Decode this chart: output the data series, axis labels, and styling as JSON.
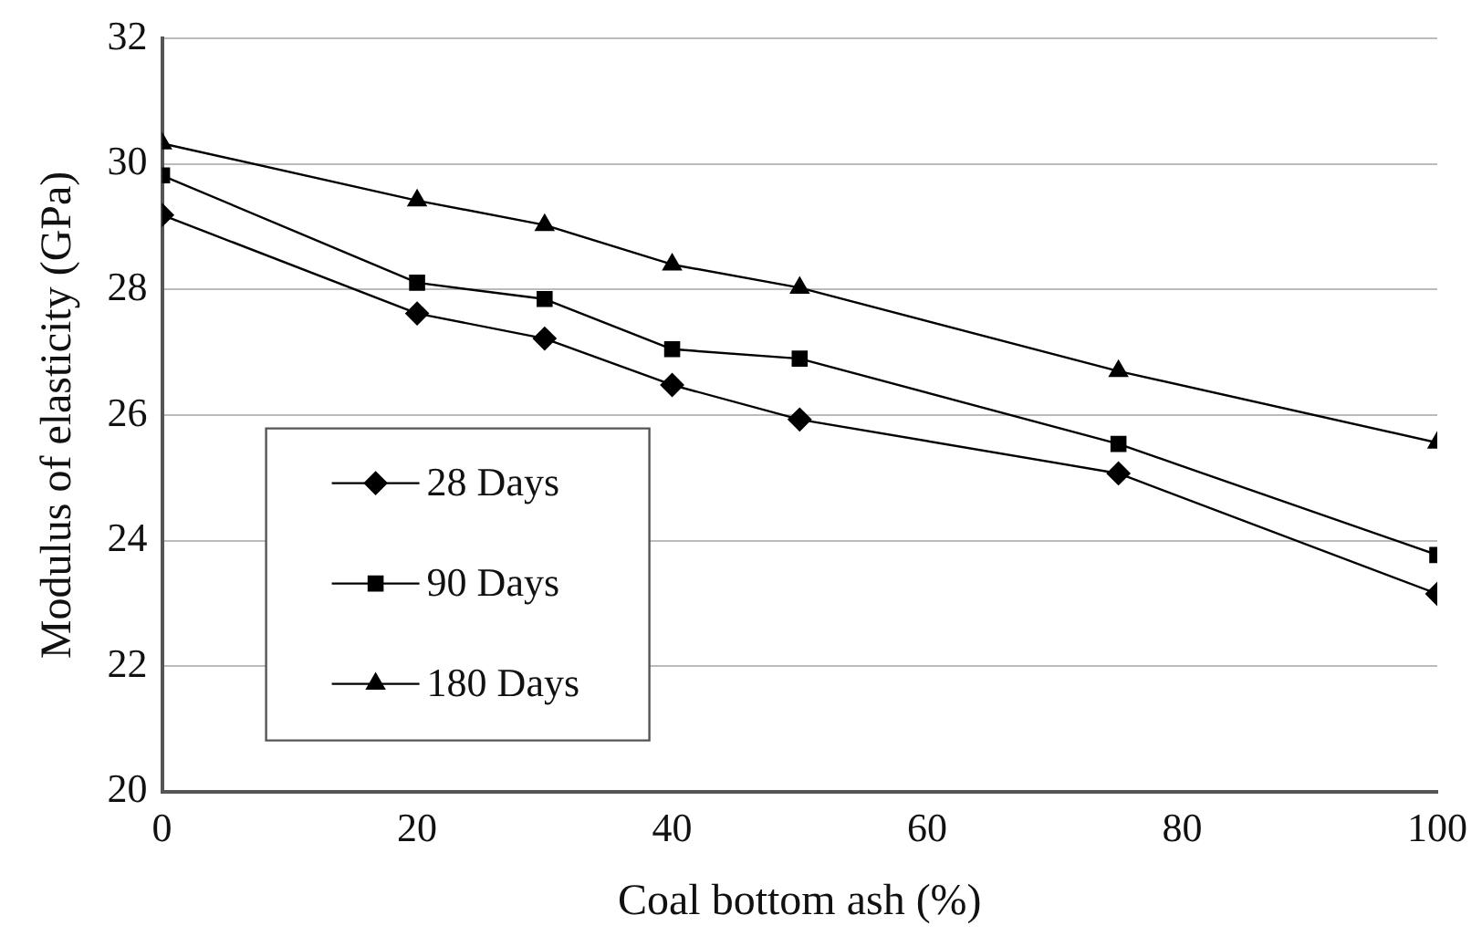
{
  "chart_data": {
    "type": "line",
    "xlabel": "Coal bottom ash (%)",
    "ylabel": "Modulus of elasticity (GPa)",
    "x": [
      0,
      20,
      30,
      40,
      50,
      75,
      100
    ],
    "series": [
      {
        "name": "28 Days",
        "color": "#000000",
        "marker": "diamond",
        "values": [
          29.19,
          27.62,
          27.22,
          26.48,
          25.93,
          25.07,
          23.15
        ]
      },
      {
        "name": "90 Days",
        "color": "#000000",
        "marker": "square",
        "values": [
          29.82,
          28.11,
          27.85,
          27.05,
          26.9,
          25.54,
          23.77
        ]
      },
      {
        "name": "180 Days",
        "color": "#000000",
        "marker": "triangle",
        "values": [
          30.33,
          29.42,
          29.03,
          28.4,
          28.03,
          26.7,
          25.56
        ]
      }
    ],
    "xlim": [
      0,
      100
    ],
    "xticks": [
      0,
      20,
      40,
      60,
      80,
      100
    ],
    "ylim": [
      20,
      32
    ],
    "yticks": [
      20,
      22,
      24,
      26,
      28,
      30,
      32
    ],
    "grid": "y",
    "legend": "bottom left",
    "line_style": "solid"
  }
}
